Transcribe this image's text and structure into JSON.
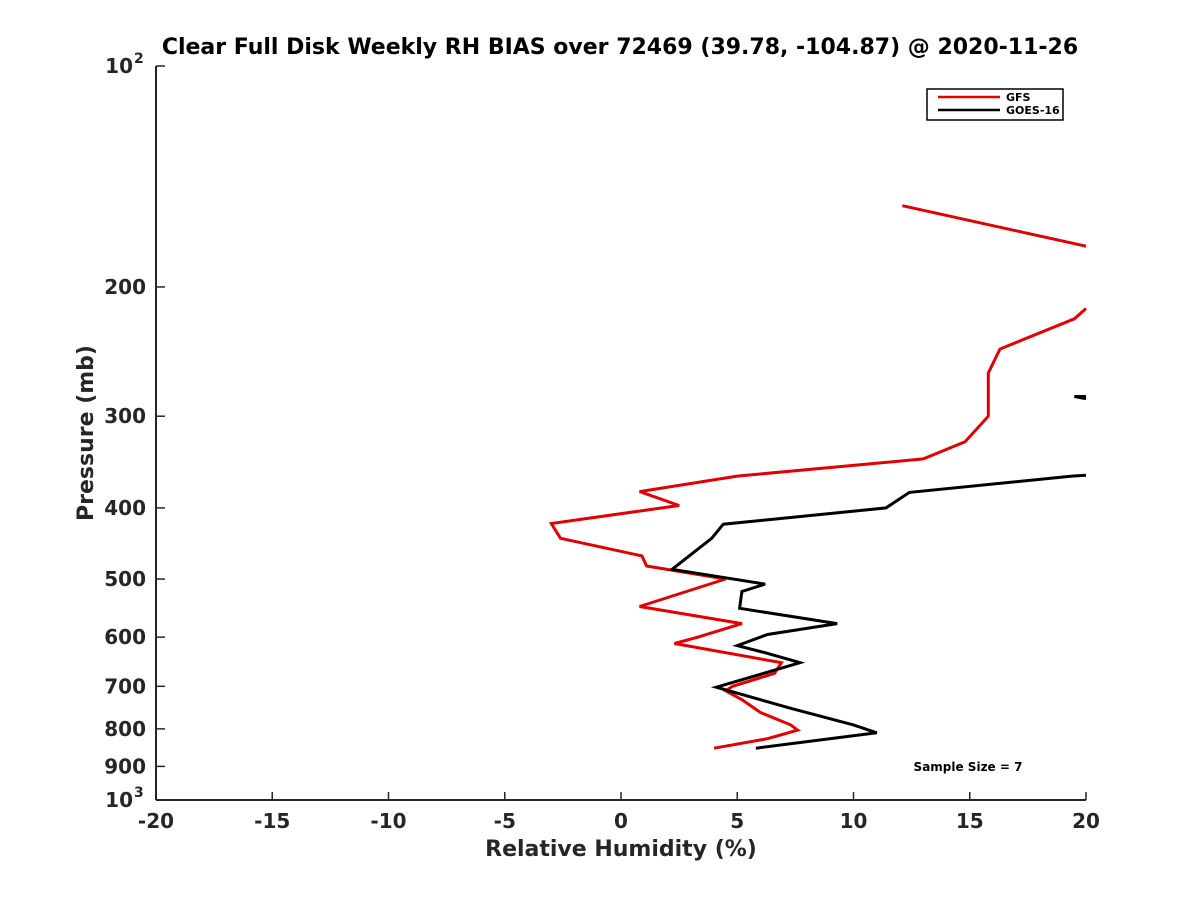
{
  "chart_data": {
    "type": "line",
    "title": "Clear Full Disk Weekly RH BIAS over 72469 (39.78, -104.87) @ 2020-11-26",
    "xlabel": "Relative Humidity (%)",
    "ylabel": "Pressure (mb)",
    "xlim": [
      -20,
      20
    ],
    "ylim": [
      100,
      1000
    ],
    "y_scale": "log",
    "y_reversed": true,
    "grid": false,
    "legend_position": "top-right",
    "x_ticks": [
      "-20",
      "-15",
      "-10",
      "-5",
      "0",
      "5",
      "10",
      "15",
      "20"
    ],
    "y_ticks": [
      {
        "value": 100,
        "base": "10",
        "exp": "2"
      },
      {
        "value": 200,
        "label": "200"
      },
      {
        "value": 300,
        "label": "300"
      },
      {
        "value": 400,
        "label": "400"
      },
      {
        "value": 500,
        "label": "500"
      },
      {
        "value": 600,
        "label": "600"
      },
      {
        "value": 700,
        "label": "700"
      },
      {
        "value": 800,
        "label": "800"
      },
      {
        "value": 900,
        "label": "900"
      },
      {
        "value": 1000,
        "base": "10",
        "exp": "3"
      }
    ],
    "series": [
      {
        "name": "GFS",
        "color": "#e00000",
        "segments": [
          [
            [
              12.1,
              155
            ],
            [
              20.0,
              176
            ]
          ],
          [
            [
              20.0,
              214
            ],
            [
              19.5,
              221
            ],
            [
              16.3,
              243
            ],
            [
              15.8,
              262
            ],
            [
              15.8,
              300
            ],
            [
              14.8,
              325
            ],
            [
              13.0,
              343
            ],
            [
              5.0,
              362
            ],
            [
              0.8,
              380
            ],
            [
              2.5,
              397
            ],
            [
              -3.0,
              420
            ],
            [
              -2.6,
              440
            ],
            [
              0.9,
              465
            ],
            [
              1.1,
              480
            ],
            [
              4.5,
              500
            ],
            [
              0.8,
              545
            ],
            [
              5.2,
              575
            ],
            [
              3.3,
              600
            ],
            [
              2.3,
              612
            ],
            [
              6.9,
              650
            ],
            [
              6.6,
              672
            ],
            [
              4.8,
              700
            ],
            [
              4.5,
              710
            ],
            [
              5.2,
              730
            ],
            [
              6.0,
              760
            ],
            [
              7.3,
              790
            ],
            [
              7.6,
              803
            ],
            [
              6.3,
              825
            ],
            [
              4.0,
              850
            ]
          ]
        ]
      },
      {
        "name": "GOES-16",
        "color": "#000000",
        "segments": [
          [
            [
              20.0,
              282
            ],
            [
              19.5,
              282
            ],
            [
              20.0,
              284
            ]
          ],
          [
            [
              20.0,
              361
            ],
            [
              19.4,
              362
            ],
            [
              12.4,
              381
            ],
            [
              11.4,
              400
            ],
            [
              4.4,
              421
            ],
            [
              3.9,
              440
            ],
            [
              2.2,
              485
            ],
            [
              6.2,
              508
            ],
            [
              5.2,
              520
            ],
            [
              5.1,
              548
            ],
            [
              9.3,
              575
            ],
            [
              6.3,
              595
            ],
            [
              5.0,
              616
            ],
            [
              6.2,
              630
            ],
            [
              7.7,
              650
            ],
            [
              4.1,
              702
            ],
            [
              7.3,
              750
            ],
            [
              10.0,
              790
            ],
            [
              11.0,
              810
            ],
            [
              5.8,
              850
            ]
          ]
        ]
      }
    ],
    "annotations": [
      "Sample Size = 7"
    ]
  }
}
